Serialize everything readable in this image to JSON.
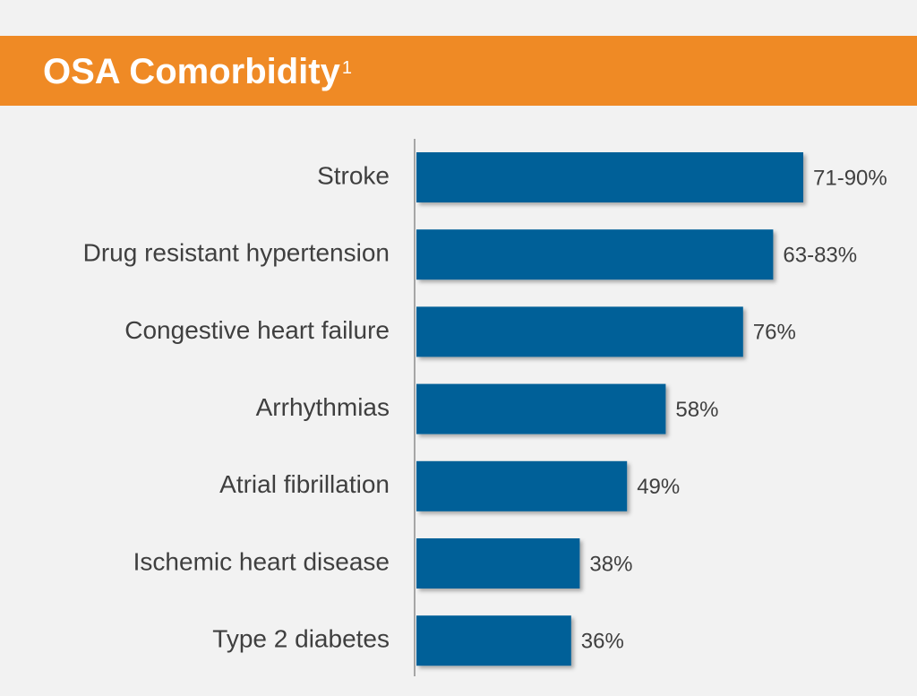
{
  "header": {
    "title": "OSA Comorbidity",
    "superscript": "1"
  },
  "colors": {
    "banner": "#ef8a25",
    "bar": "#036098",
    "background": "#f2f2f2",
    "text": "#3f3f3f"
  },
  "chart_data": {
    "type": "bar",
    "orientation": "horizontal",
    "title": "",
    "xlabel": "",
    "ylabel": "",
    "grid": false,
    "legend": "none",
    "categories": [
      "Stroke",
      "Drug resistant hypertension",
      "Congestive heart failure",
      "Arrhythmias",
      "Atrial fibrillation",
      "Ischemic heart disease",
      "Type 2 diabetes"
    ],
    "values": [
      90,
      83,
      76,
      58,
      49,
      38,
      36
    ],
    "value_labels": [
      "71-90%",
      "63-83%",
      "76%",
      "58%",
      "49%",
      "38%",
      "36%"
    ],
    "xlim": [
      0,
      100
    ]
  }
}
